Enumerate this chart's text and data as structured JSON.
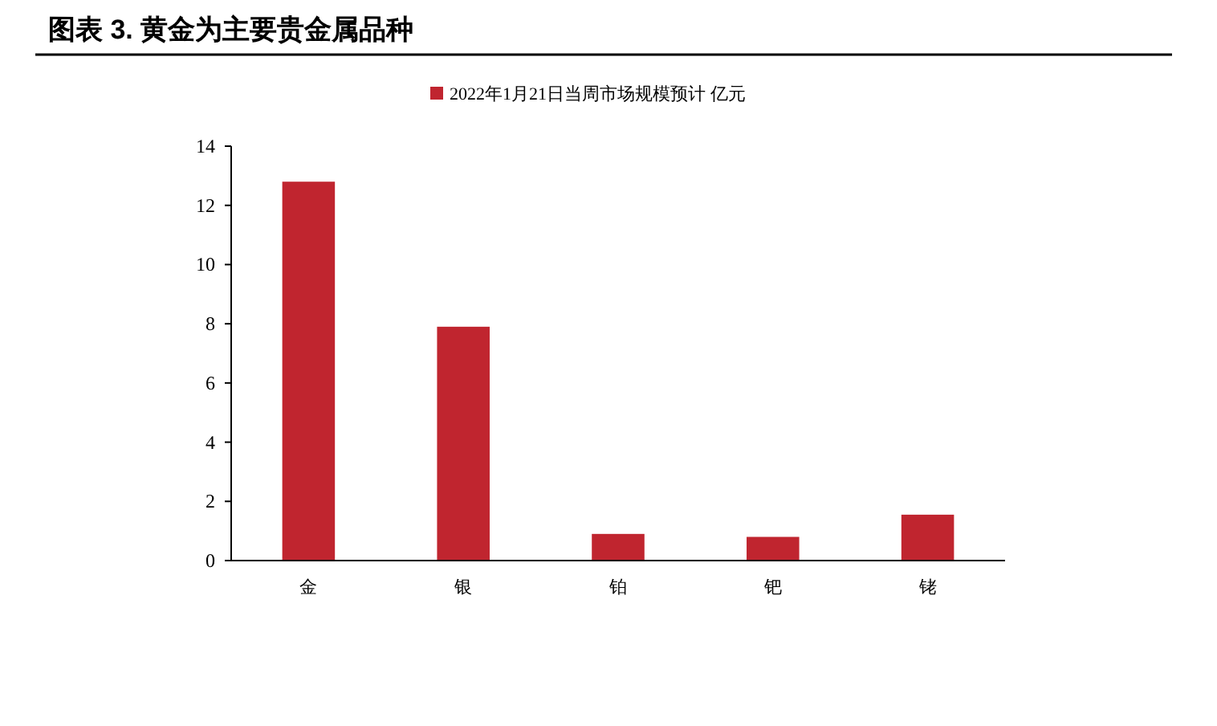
{
  "chart_data": {
    "type": "bar",
    "title": "图表 3.  黄金为主要贵金属品种",
    "categories": [
      "金",
      "银",
      "铂",
      "钯",
      "铑"
    ],
    "series": [
      {
        "name": "2022年1月21日当周市场规模预计 亿元",
        "color": "#c0252f",
        "values": [
          12.8,
          7.9,
          0.9,
          0.8,
          1.55
        ]
      }
    ],
    "ylim": [
      0,
      14
    ],
    "yticks": [
      0,
      2,
      4,
      6,
      8,
      10,
      12,
      14
    ],
    "legend": "top",
    "grid": false
  }
}
